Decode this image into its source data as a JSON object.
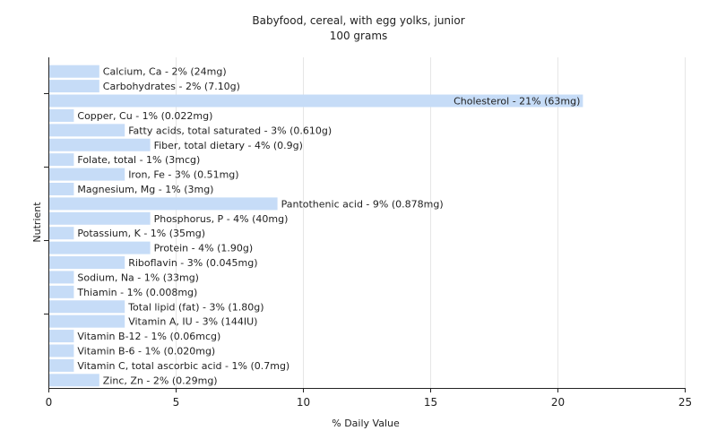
{
  "chart_data": {
    "type": "bar",
    "orientation": "horizontal",
    "title": "Babyfood, cereal, with egg yolks, junior",
    "subtitle": "100 grams",
    "xlabel": "% Daily Value",
    "ylabel": "Nutrient",
    "xlim": [
      0,
      25
    ],
    "xticks": [
      0,
      5,
      10,
      15,
      20,
      25
    ],
    "grid": true,
    "bar_color": "#c6dcf7",
    "categories": [
      "Calcium, Ca",
      "Carbohydrates",
      "Cholesterol",
      "Copper, Cu",
      "Fatty acids, total saturated",
      "Fiber, total dietary",
      "Folate, total",
      "Iron, Fe",
      "Magnesium, Mg",
      "Pantothenic acid",
      "Phosphorus, P",
      "Potassium, K",
      "Protein",
      "Riboflavin",
      "Sodium, Na",
      "Thiamin",
      "Total lipid (fat)",
      "Vitamin A, IU",
      "Vitamin B-12",
      "Vitamin B-6",
      "Vitamin C, total ascorbic acid",
      "Zinc, Zn"
    ],
    "values": [
      2,
      2,
      21,
      1,
      3,
      4,
      1,
      3,
      1,
      9,
      4,
      1,
      4,
      3,
      1,
      1,
      3,
      3,
      1,
      1,
      1,
      2
    ],
    "labels": [
      "Calcium, Ca - 2% (24mg)",
      "Carbohydrates - 2% (7.10g)",
      "Cholesterol - 21% (63mg)",
      "Copper, Cu - 1% (0.022mg)",
      "Fatty acids, total saturated - 3% (0.610g)",
      "Fiber, total dietary - 4% (0.9g)",
      "Folate, total - 1% (3mcg)",
      "Iron, Fe - 3% (0.51mg)",
      "Magnesium, Mg - 1% (3mg)",
      "Pantothenic acid - 9% (0.878mg)",
      "Phosphorus, P - 4% (40mg)",
      "Potassium, K - 1% (35mg)",
      "Protein - 4% (1.90g)",
      "Riboflavin - 3% (0.045mg)",
      "Sodium, Na - 1% (33mg)",
      "Thiamin - 1% (0.008mg)",
      "Total lipid (fat) - 3% (1.80g)",
      "Vitamin A, IU - 3% (144IU)",
      "Vitamin B-12 - 1% (0.06mcg)",
      "Vitamin B-6 - 1% (0.020mg)",
      "Vitamin C, total ascorbic acid - 1% (0.7mg)",
      "Zinc, Zn - 2% (0.29mg)"
    ]
  }
}
